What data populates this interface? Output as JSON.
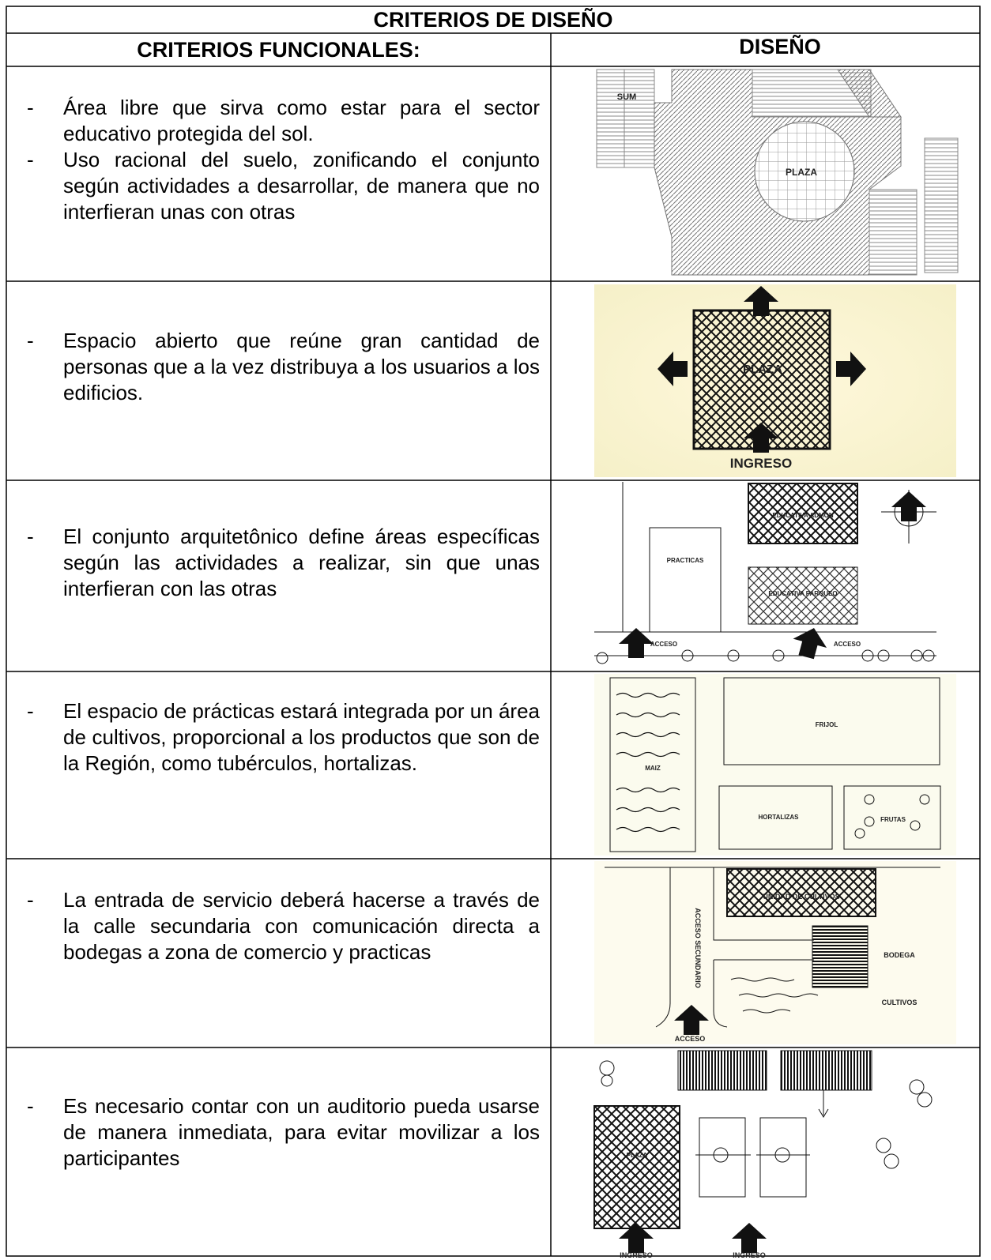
{
  "header": {
    "title": "CRITERIOS DE DISEÑO",
    "col1": "CRITERIOS FUNCIONALES:",
    "col2": "DISEÑO"
  },
  "marker": "-",
  "rows": [
    {
      "bullets": [
        "Área libre que sirva como estar para el sector educativo protegida del sol.",
        "Uso racional del suelo, zonificando el conjunto según actividades a desarrollar, de manera que no interfieran unas con otras"
      ],
      "labels": [
        "SUM",
        "PLAZA"
      ]
    },
    {
      "bullets": [
        "Espacio abierto que reúne gran cantidad de personas que a la vez distribuya a los usuarios a los edificios."
      ],
      "labels": [
        "PLAZA",
        "INGRESO"
      ]
    },
    {
      "bullets": [
        "El conjunto arquitetônico define áreas específicas según las actividades a realizar, sin que unas interfieran con las otras"
      ],
      "labels": [
        "PRACTICAS",
        "EDUCATIVA ADMON",
        "EDUCATIVA PARQUEO",
        "ACCESO",
        "ACCESO"
      ]
    },
    {
      "bullets": [
        "El espacio de prácticas estará integrada por un área de cultivos, proporcional a los productos que son de la Región, como tubérculos, hortalizas."
      ],
      "labels": [
        "MAIZ",
        "FRIJOL",
        "HORTALIZAS",
        "FRUTAS"
      ]
    },
    {
      "bullets": [
        "La entrada de servicio deberá hacerse a través de la calle secundaria con comunicación directa a bodegas a zona de comercio y practicas"
      ],
      "labels": [
        "UNIDAD DE CULTIVOS",
        "ACCESO SECUNDARIO",
        "BODEGA",
        "CULTIVOS",
        "ACCESO"
      ]
    },
    {
      "bullets": [
        "Es necesario contar con un auditorio pueda usarse de manera inmediata, para evitar movilizar  a los participantes"
      ],
      "labels": [
        "PLAZA",
        "INGRESO",
        "INGRESO"
      ]
    }
  ]
}
